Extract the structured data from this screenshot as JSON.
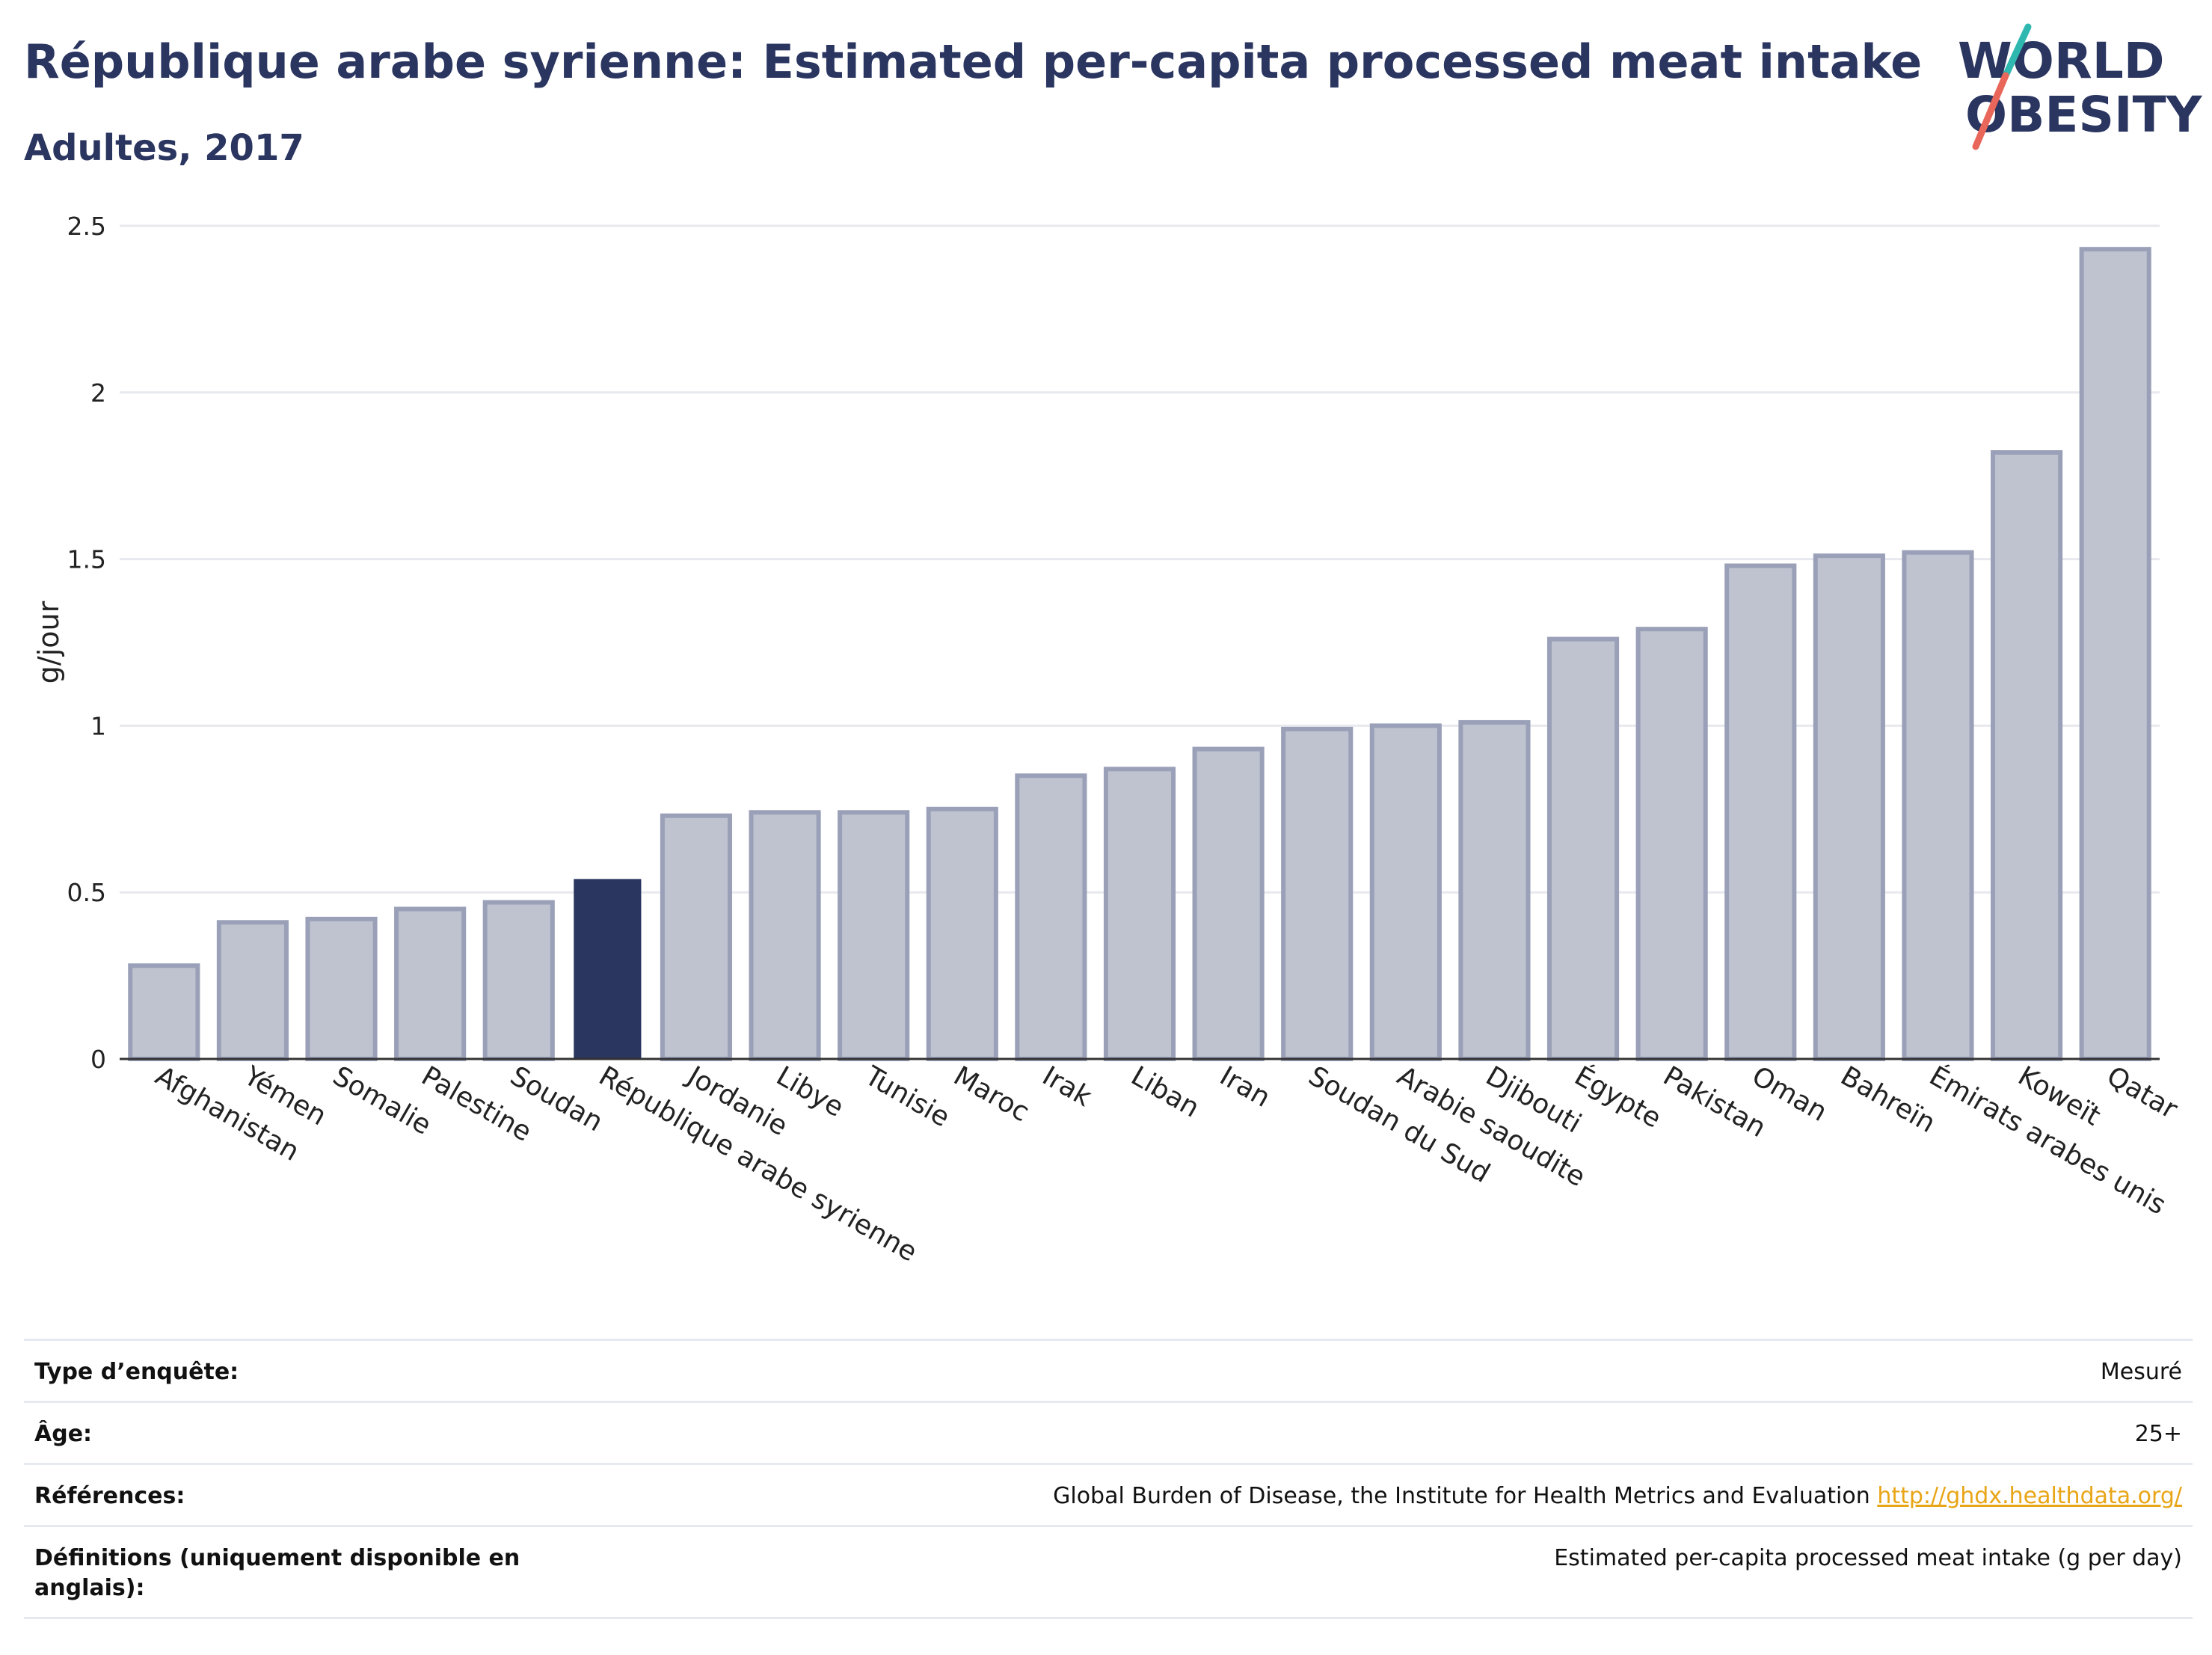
{
  "header": {
    "title": "République arabe syrienne: Estimated per-capita processed meat intake",
    "subtitle": "Adultes, 2017"
  },
  "logo": {
    "line1": "WORLD",
    "line2": "OBESITY"
  },
  "colors": {
    "highlight": "#2a3560",
    "bar_fill": "#bfc3d0",
    "bar_stroke": "#9aa0b8",
    "text": "#2a3560",
    "logo_teal": "#2fb8b0",
    "logo_coral": "#e8665a",
    "link": "#e8a516"
  },
  "chart_data": {
    "type": "bar",
    "title": "République arabe syrienne: Estimated per-capita processed meat intake",
    "subtitle": "Adultes, 2017",
    "xlabel": "",
    "ylabel": "g/jour",
    "ylim": [
      0,
      2.5
    ],
    "yticks": [
      "0",
      "0.5",
      "1",
      "1.5",
      "2",
      "2.5"
    ],
    "grid": true,
    "highlight": "République arabe syrienne",
    "categories": [
      "Afghanistan",
      "Yémen",
      "Somalie",
      "Palestine",
      "Soudan",
      "République arabe syrienne",
      "Jordanie",
      "Libye",
      "Tunisie",
      "Maroc",
      "Irak",
      "Liban",
      "Iran",
      "Soudan du Sud",
      "Arabie saoudite",
      "Djibouti",
      "Égypte",
      "Pakistan",
      "Oman",
      "Bahreïn",
      "Émirats arabes unis",
      "Koweït",
      "Qatar"
    ],
    "values": [
      0.28,
      0.41,
      0.42,
      0.45,
      0.47,
      0.54,
      0.73,
      0.74,
      0.74,
      0.75,
      0.85,
      0.87,
      0.93,
      0.99,
      1.0,
      1.01,
      1.26,
      1.29,
      1.48,
      1.51,
      1.52,
      1.82,
      2.43
    ]
  },
  "info": [
    {
      "key": "Type d’enquête:",
      "value": "Mesuré"
    },
    {
      "key": "Âge:",
      "value": "25+"
    },
    {
      "key": "Références:",
      "value": "Global Burden of Disease, the Institute for Health Metrics and Evaluation",
      "link": "http://ghdx.healthdata.org/"
    },
    {
      "key": "Définitions (uniquement disponible en anglais):",
      "value": "Estimated per-capita processed meat intake (g per day)"
    }
  ]
}
